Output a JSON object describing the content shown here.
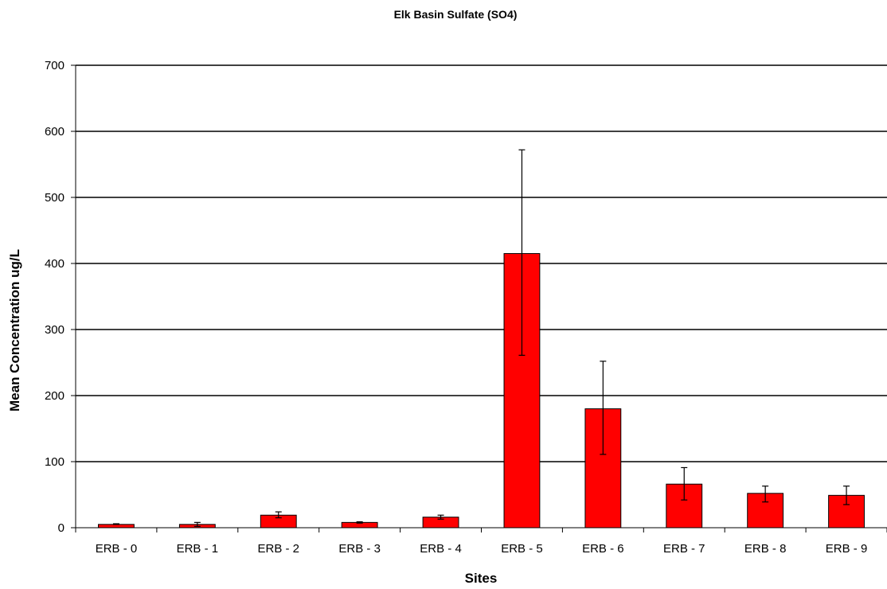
{
  "chart_data": {
    "type": "bar",
    "title": "Elk Basin Sulfate (SO4)",
    "xlabel": "Sites",
    "ylabel": "Mean Concentration ug/L",
    "categories": [
      "ERB - 0",
      "ERB - 1",
      "ERB - 2",
      "ERB - 3",
      "ERB - 4",
      "ERB - 5",
      "ERB - 6",
      "ERB - 7",
      "ERB - 8",
      "ERB - 9"
    ],
    "values": [
      5,
      5,
      19,
      8,
      16,
      415,
      180,
      66,
      52,
      49
    ],
    "error_low": [
      5,
      2,
      15,
      7,
      13,
      261,
      111,
      42,
      39,
      35
    ],
    "error_high": [
      6,
      8,
      24,
      9,
      19,
      572,
      252,
      91,
      63,
      63
    ],
    "ylim": [
      0,
      700
    ],
    "yticks": [
      0,
      100,
      200,
      300,
      400,
      500,
      600,
      700
    ],
    "grid": true,
    "legend": "none",
    "bar_color": "#ff0000",
    "bar_edge_color": "#000000"
  }
}
